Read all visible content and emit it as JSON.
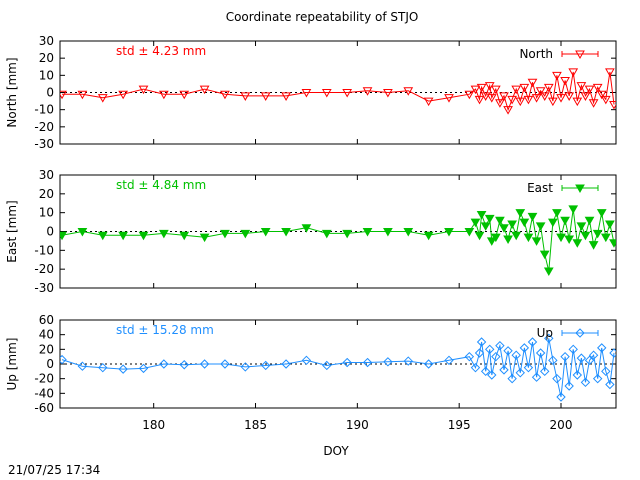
{
  "title": "Coordinate repeatability of STJO",
  "timestamp": "21/07/25 17:34",
  "xlabel": "DOY",
  "chart_data": [
    {
      "type": "line",
      "panel": "north",
      "ylabel": "North [mm]",
      "legend": "North",
      "legend_position": "top-right",
      "std_label": "std ± 4.23 mm",
      "color": "#ff0000",
      "marker": "triangle-down-open",
      "xlim": [
        175.4,
        202.7
      ],
      "ylim": [
        -30,
        30
      ],
      "yticks": [
        30,
        20,
        10,
        0,
        -10,
        -20,
        -30
      ],
      "xticks": [
        180,
        185,
        190,
        195,
        200
      ],
      "x": [
        175.5,
        176.5,
        177.5,
        178.5,
        179.5,
        180.5,
        181.5,
        182.5,
        183.5,
        184.5,
        185.5,
        186.5,
        187.5,
        188.5,
        189.5,
        190.5,
        191.5,
        192.5,
        193.5,
        194.5,
        195.5,
        195.8,
        196.0,
        196.1,
        196.3,
        196.5,
        196.6,
        196.8,
        197.0,
        197.2,
        197.4,
        197.6,
        197.8,
        198.0,
        198.2,
        198.4,
        198.6,
        198.8,
        199.0,
        199.2,
        199.4,
        199.6,
        199.8,
        200.0,
        200.2,
        200.4,
        200.6,
        200.8,
        201.0,
        201.2,
        201.4,
        201.6,
        201.8,
        202.0,
        202.2,
        202.4,
        202.6
      ],
      "values": [
        -1,
        -1,
        -3,
        -1,
        2,
        -1,
        -1,
        2,
        -1,
        -2,
        -2,
        -2,
        0,
        0,
        0,
        1,
        0,
        1,
        -5,
        -3,
        -1,
        2,
        -4,
        3,
        -2,
        4,
        -3,
        2,
        -6,
        -2,
        -10,
        -4,
        2,
        -5,
        3,
        -4,
        6,
        -3,
        1,
        -2,
        3,
        -5,
        10,
        -3,
        7,
        -2,
        12,
        -5,
        4,
        -2,
        2,
        -6,
        3,
        -1,
        -4,
        12,
        -7
      ]
    },
    {
      "type": "line",
      "panel": "east",
      "ylabel": "East [mm]",
      "legend": "East",
      "legend_position": "top-right",
      "std_label": "std ± 4.84 mm",
      "color": "#00c000",
      "marker": "triangle-down-filled",
      "xlim": [
        175.4,
        202.7
      ],
      "ylim": [
        -30,
        30
      ],
      "yticks": [
        30,
        20,
        10,
        0,
        -10,
        -20,
        -30
      ],
      "xticks": [
        180,
        185,
        190,
        195,
        200
      ],
      "x": [
        175.5,
        176.5,
        177.5,
        178.5,
        179.5,
        180.5,
        181.5,
        182.5,
        183.5,
        184.5,
        185.5,
        186.5,
        187.5,
        188.5,
        189.5,
        190.5,
        191.5,
        192.5,
        193.5,
        194.5,
        195.5,
        195.8,
        196.0,
        196.1,
        196.3,
        196.5,
        196.6,
        196.8,
        197.0,
        197.2,
        197.4,
        197.6,
        197.8,
        198.0,
        198.2,
        198.4,
        198.6,
        198.8,
        199.0,
        199.2,
        199.4,
        199.6,
        199.8,
        200.0,
        200.2,
        200.4,
        200.6,
        200.8,
        201.0,
        201.2,
        201.4,
        201.6,
        201.8,
        202.0,
        202.2,
        202.4,
        202.6
      ],
      "values": [
        -2,
        0,
        -2,
        -2,
        -2,
        -1,
        -2,
        -3,
        -1,
        -1,
        0,
        0,
        2,
        -1,
        -1,
        0,
        0,
        0,
        -2,
        0,
        0,
        5,
        -2,
        9,
        3,
        7,
        -5,
        -3,
        6,
        2,
        -4,
        4,
        -2,
        10,
        5,
        -3,
        8,
        -5,
        3,
        -12,
        -21,
        5,
        10,
        -3,
        6,
        -4,
        12,
        -6,
        3,
        -2,
        6,
        -7,
        -1,
        10,
        -3,
        4,
        -6
      ]
    },
    {
      "type": "line",
      "panel": "up",
      "ylabel": "Up [mm]",
      "legend": "Up",
      "legend_position": "top-right",
      "std_label": "std ± 15.28 mm",
      "color": "#1f8fff",
      "marker": "diamond-open",
      "xlim": [
        175.4,
        202.7
      ],
      "ylim": [
        -60,
        60
      ],
      "yticks": [
        60,
        40,
        20,
        0,
        -20,
        -40,
        -60
      ],
      "xticks": [
        180,
        185,
        190,
        195,
        200
      ],
      "x": [
        175.5,
        176.5,
        177.5,
        178.5,
        179.5,
        180.5,
        181.5,
        182.5,
        183.5,
        184.5,
        185.5,
        186.5,
        187.5,
        188.5,
        189.5,
        190.5,
        191.5,
        192.5,
        193.5,
        194.5,
        195.5,
        195.8,
        196.0,
        196.1,
        196.3,
        196.5,
        196.6,
        196.8,
        197.0,
        197.2,
        197.4,
        197.6,
        197.8,
        198.0,
        198.2,
        198.4,
        198.6,
        198.8,
        199.0,
        199.2,
        199.4,
        199.6,
        199.8,
        200.0,
        200.2,
        200.4,
        200.6,
        200.8,
        201.0,
        201.2,
        201.4,
        201.6,
        201.8,
        202.0,
        202.2,
        202.4,
        202.6
      ],
      "values": [
        6,
        -3,
        -5,
        -7,
        -6,
        0,
        -1,
        0,
        0,
        -4,
        -2,
        0,
        5,
        -2,
        2,
        2,
        3,
        4,
        0,
        5,
        10,
        -5,
        15,
        30,
        -10,
        20,
        -15,
        10,
        25,
        -8,
        18,
        -20,
        12,
        -12,
        22,
        -5,
        30,
        -18,
        15,
        -10,
        35,
        5,
        -20,
        -45,
        10,
        -30,
        20,
        -15,
        8,
        -25,
        5,
        12,
        -20,
        22,
        -10,
        -28,
        15
      ]
    }
  ]
}
